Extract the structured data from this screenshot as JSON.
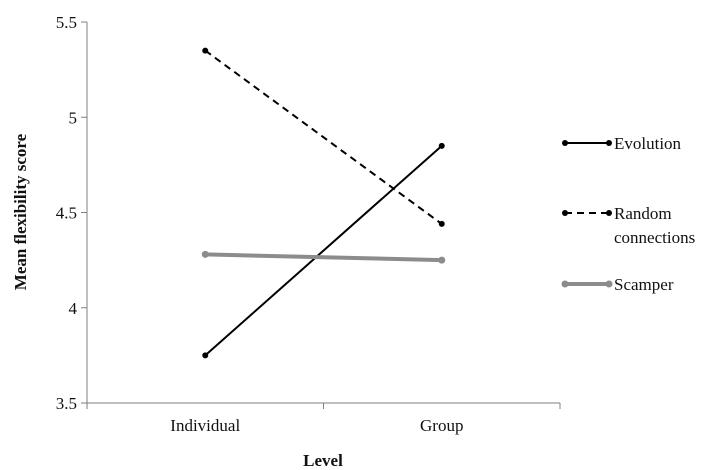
{
  "chart_data": {
    "type": "line",
    "xlabel": "Level",
    "ylabel": "Mean flexibility score",
    "categories": [
      "Individual",
      "Group"
    ],
    "ylim": [
      3.5,
      5.5
    ],
    "yticks": [
      "3.5",
      "4",
      "4.5",
      "5",
      "5.5"
    ],
    "grid": false,
    "legend_position": "right",
    "series": [
      {
        "name": "Evolution",
        "values": [
          3.75,
          4.85
        ],
        "color": "#000000",
        "dash": "solid"
      },
      {
        "name": "Random connections",
        "name_lines": [
          "Random",
          "connections"
        ],
        "values": [
          5.35,
          4.44
        ],
        "color": "#000000",
        "dash": "dashed"
      },
      {
        "name": "Scamper",
        "values": [
          4.28,
          4.25
        ],
        "color": "#8c8c8c",
        "dash": "solid"
      }
    ]
  }
}
